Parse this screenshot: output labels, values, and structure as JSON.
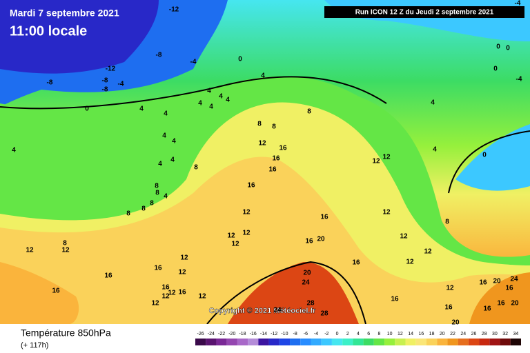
{
  "header": {
    "date": "Mardi 7 septembre 2021",
    "time": "11:00 locale",
    "run": "Run ICON 12 Z du Jeudi 2 septembre 2021"
  },
  "copyright": "Copyright © 2021 Météociel.fr",
  "footer": {
    "title": "Température 850hPa",
    "lead": "(+ 117h)"
  },
  "colorbar": {
    "ticks": [
      -26,
      -24,
      -22,
      -20,
      -18,
      -16,
      -14,
      -12,
      -10,
      -8,
      -6,
      -4,
      -2,
      0,
      2,
      4,
      6,
      8,
      10,
      12,
      14,
      16,
      18,
      20,
      22,
      24,
      26,
      28,
      30,
      32,
      34
    ],
    "colors": [
      "#3a0a4a",
      "#5a1470",
      "#7a2896",
      "#9446b0",
      "#a868c8",
      "#b48cd8",
      "#3c14a0",
      "#2828c8",
      "#1e46e6",
      "#1e6ef0",
      "#288cff",
      "#32aaff",
      "#3cc8ff",
      "#46e6f0",
      "#3cf0c8",
      "#32e696",
      "#3cdc64",
      "#64e646",
      "#96f03c",
      "#c8f050",
      "#f0f064",
      "#fae678",
      "#fad25a",
      "#fab43c",
      "#f0961e",
      "#e66e1e",
      "#dc4614",
      "#c8280f",
      "#a01414",
      "#6e0a0a",
      "#1e0505"
    ]
  },
  "map": {
    "labels": [
      -12,
      -12,
      -8,
      -8,
      -8,
      -8,
      -4,
      -4,
      0,
      0,
      4,
      4,
      4,
      4,
      4,
      4,
      4,
      4,
      4,
      4,
      4,
      4,
      4,
      4,
      8,
      8,
      8,
      8,
      8,
      8,
      8,
      8,
      8,
      8,
      12,
      12,
      12,
      12,
      12,
      12,
      12,
      12,
      12,
      12,
      12,
      12,
      12,
      16,
      16,
      16,
      16,
      16,
      16,
      16,
      16,
      16,
      16,
      16,
      16,
      16,
      20,
      20,
      24,
      28,
      28,
      24,
      12,
      12,
      12,
      12,
      16,
      20,
      16,
      20,
      16,
      24,
      20,
      16,
      16,
      8,
      4,
      4,
      0,
      0,
      0,
      0,
      -4,
      -4,
      12,
      12,
      12
    ]
  }
}
